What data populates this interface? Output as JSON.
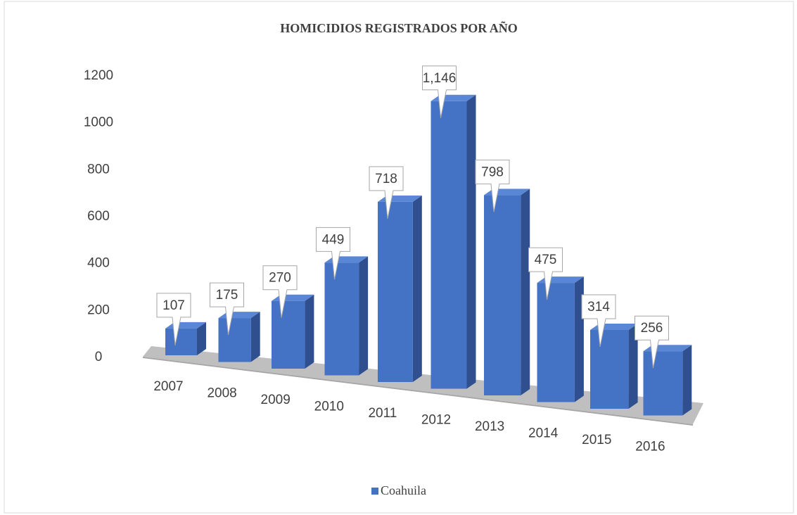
{
  "chart_data": {
    "type": "bar3d",
    "title": "HOMICIDIOS REGISTRADOS POR AÑO",
    "categories": [
      "2007",
      "2008",
      "2009",
      "2010",
      "2011",
      "2012",
      "2013",
      "2014",
      "2015",
      "2016"
    ],
    "series": [
      {
        "name": "Coahuila",
        "color": "#4472c4",
        "values": [
          107,
          175,
          270,
          449,
          718,
          1146,
          798,
          475,
          314,
          256
        ],
        "value_labels": [
          "107",
          "175",
          "270",
          "449",
          "718",
          "1,146",
          "798",
          "475",
          "314",
          "256"
        ]
      }
    ],
    "ylim": [
      0,
      1200
    ],
    "yticks": [
      0,
      200,
      400,
      600,
      800,
      1000,
      1200
    ],
    "grid": false,
    "legend": "bottom"
  }
}
